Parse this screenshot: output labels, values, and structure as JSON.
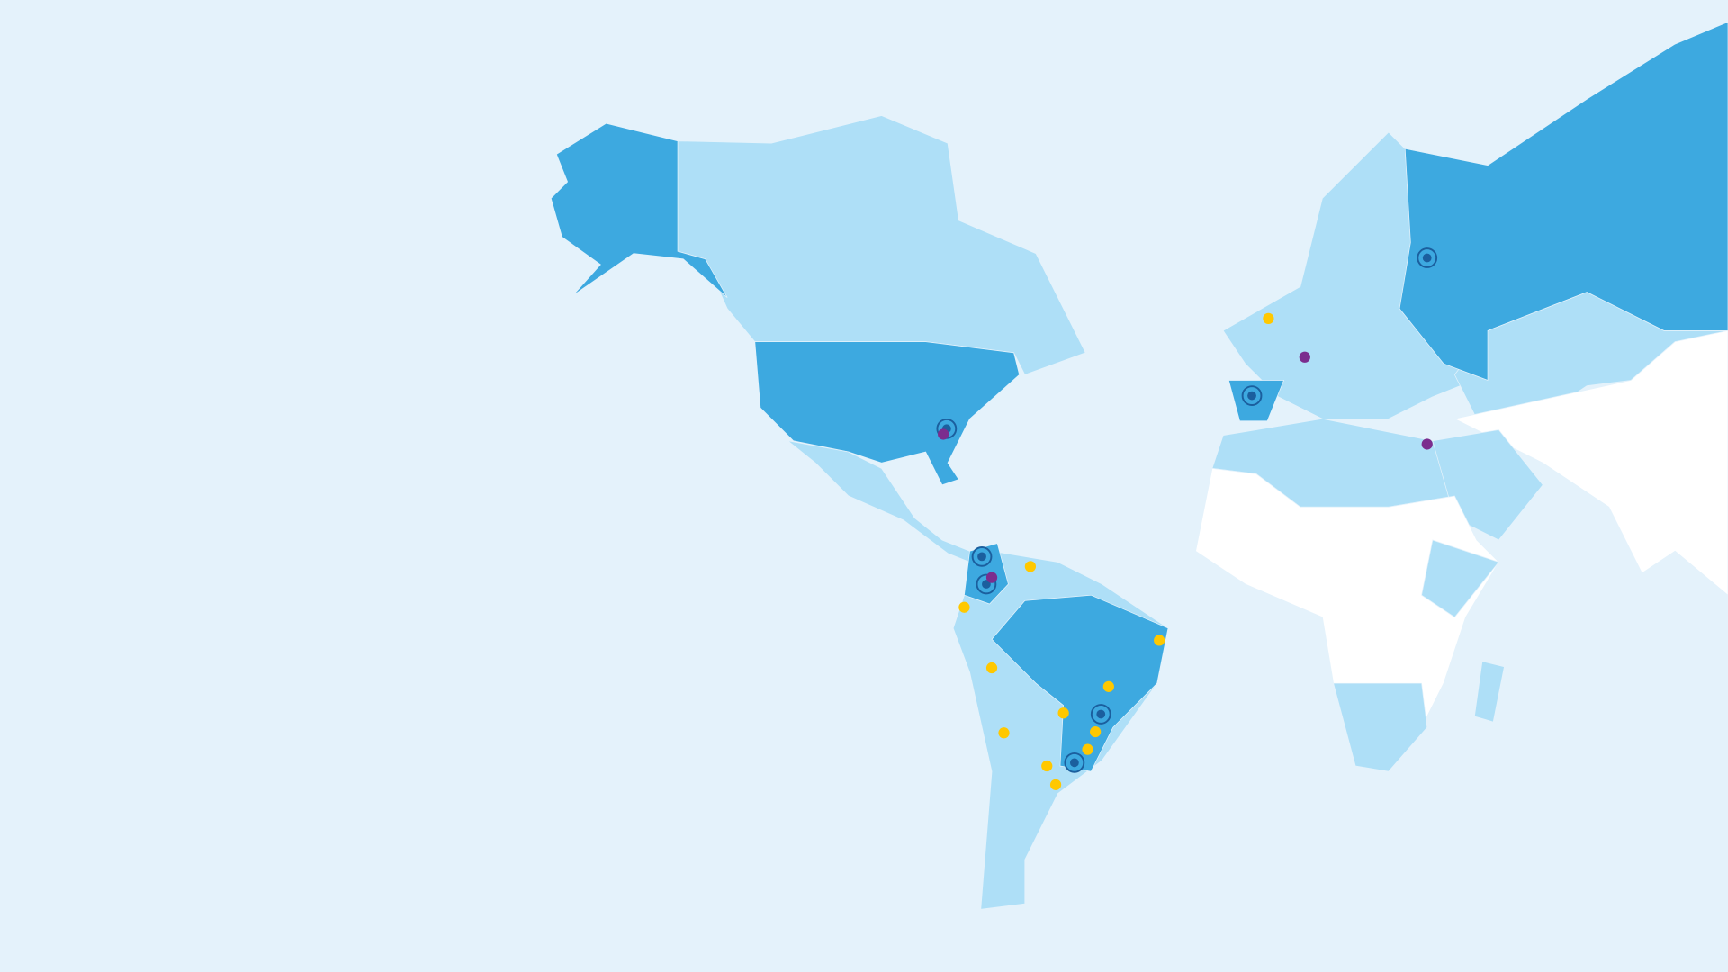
{
  "map": {
    "colors": {
      "ocean": "#e4f2fb",
      "highlighted_country": "#3da9e0",
      "active_country": "#aedff7",
      "inactive_country": "#ffffff",
      "target_marker": "#1b5f9e",
      "purple_marker": "#7b2d8e",
      "yellow_marker": "#ffc800"
    },
    "highlighted_regions": [
      "alaska",
      "usa",
      "colombia",
      "brazil",
      "spain",
      "russia"
    ],
    "marker_types": [
      "target-marker",
      "purple-dot-marker",
      "yellow-dot-marker"
    ]
  }
}
